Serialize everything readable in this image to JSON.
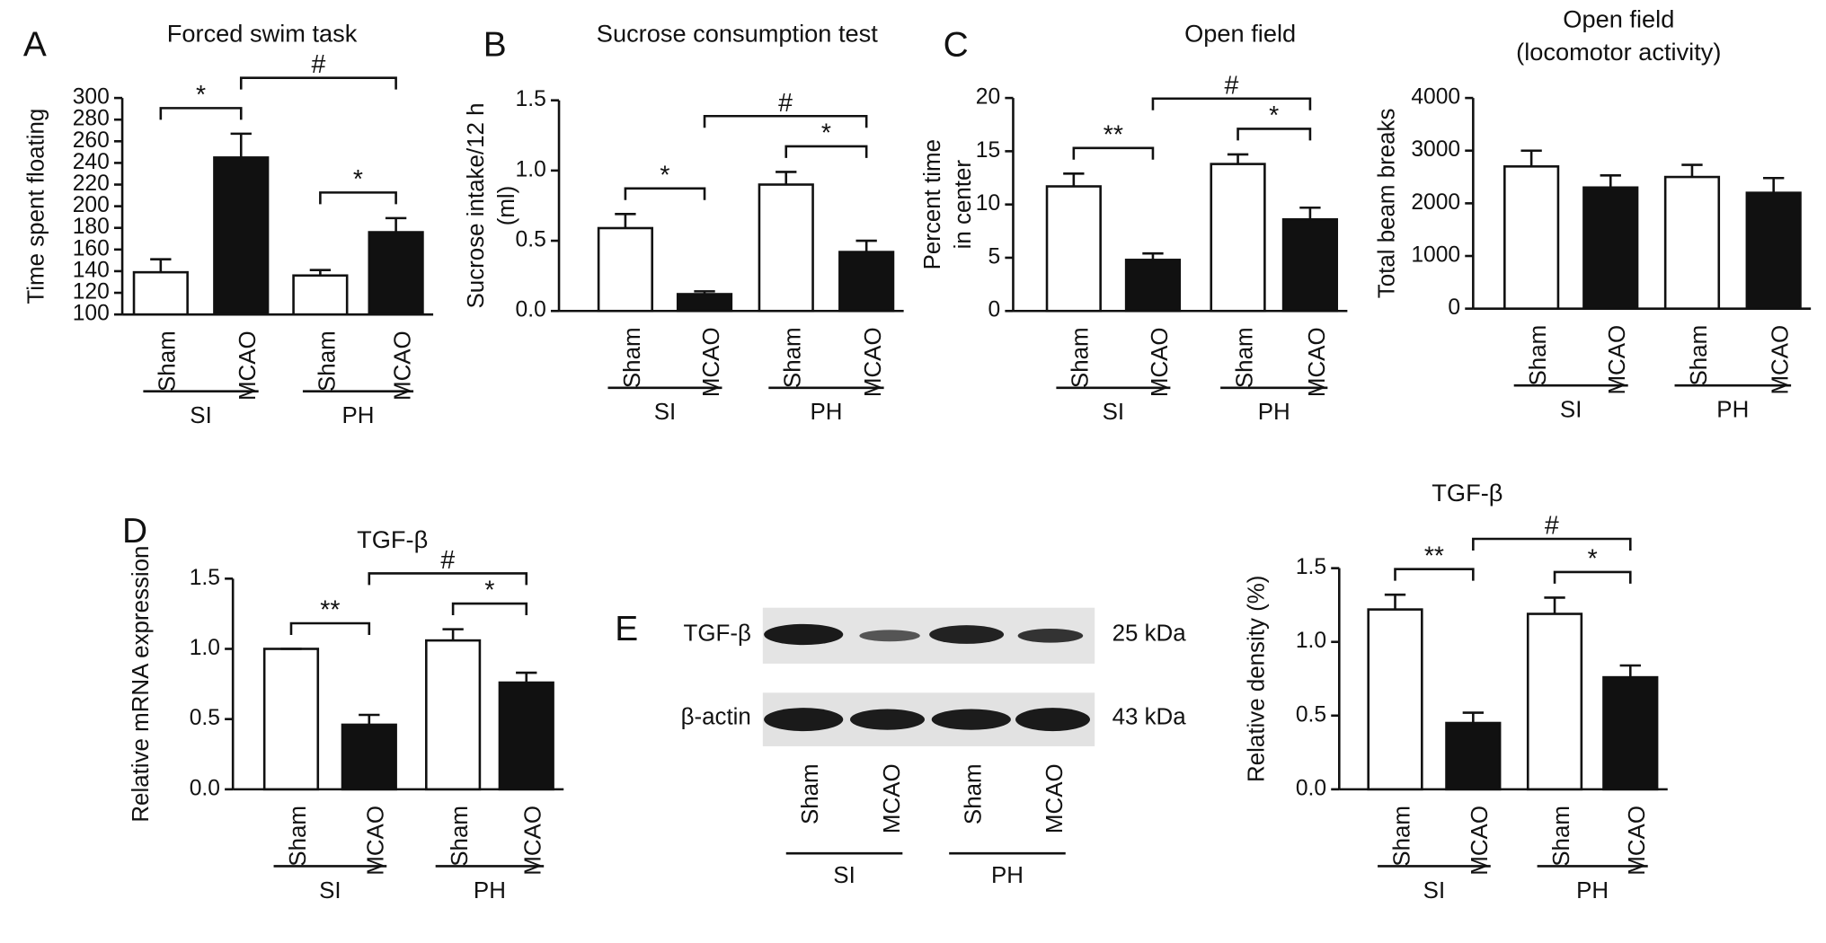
{
  "chart_data": [
    {
      "type": "bar",
      "panel": "A",
      "title": [
        "Forced swim task"
      ],
      "y_label": [
        "Time spent floating"
      ],
      "categories": [
        "Sham",
        "MCAO",
        "Sham",
        "MCAO"
      ],
      "groups": [
        "SI",
        "PH"
      ],
      "values": [
        139,
        245,
        136,
        176
      ],
      "errors": [
        12,
        22,
        5,
        13
      ],
      "colors": [
        "#ffffff",
        "#111111",
        "#ffffff",
        "#111111"
      ],
      "ylim": [
        100,
        300
      ],
      "yticks": [
        100,
        120,
        140,
        160,
        180,
        200,
        220,
        240,
        260,
        280,
        300
      ],
      "comparisons": [
        {
          "label": "*",
          "between": [
            0,
            1
          ]
        },
        {
          "label": "*",
          "between": [
            2,
            3
          ]
        },
        {
          "label": "#",
          "between": [
            1,
            3
          ]
        }
      ]
    },
    {
      "type": "bar",
      "panel": "B",
      "title": [
        "Sucrose consumption test"
      ],
      "y_label": [
        "Sucrose intake/12 h",
        "(ml)"
      ],
      "categories": [
        "Sham",
        "MCAO",
        "Sham",
        "MCAO"
      ],
      "groups": [
        "SI",
        "PH"
      ],
      "values": [
        0.59,
        0.12,
        0.9,
        0.42
      ],
      "errors": [
        0.1,
        0.02,
        0.09,
        0.08
      ],
      "colors": [
        "#ffffff",
        "#111111",
        "#ffffff",
        "#111111"
      ],
      "ylim": [
        0,
        1.5
      ],
      "yticks": [
        {
          "value": 0,
          "label": "0.0"
        },
        {
          "value": 0.5,
          "label": "0.5"
        },
        {
          "value": 1,
          "label": "1.0"
        },
        {
          "value": 1.5,
          "label": "1.5"
        }
      ],
      "comparisons": [
        {
          "label": "*",
          "between": [
            0,
            1
          ]
        },
        {
          "label": "*",
          "between": [
            2,
            3
          ]
        },
        {
          "label": "#",
          "between": [
            1,
            3
          ]
        }
      ]
    },
    {
      "type": "bar",
      "panel": "C",
      "title": [
        "Open field"
      ],
      "y_label": [
        "Percent time",
        "in center"
      ],
      "categories": [
        "Sham",
        "MCAO",
        "Sham",
        "MCAO"
      ],
      "groups": [
        "SI",
        "PH"
      ],
      "values": [
        11.7,
        4.8,
        13.8,
        8.6
      ],
      "errors": [
        1.2,
        0.6,
        0.9,
        1.1
      ],
      "colors": [
        "#ffffff",
        "#111111",
        "#ffffff",
        "#111111"
      ],
      "ylim": [
        0,
        20
      ],
      "yticks": [
        0,
        5,
        10,
        15,
        20
      ],
      "comparisons": [
        {
          "label": "**",
          "between": [
            0,
            1
          ]
        },
        {
          "label": "*",
          "between": [
            2,
            3
          ]
        },
        {
          "label": "#",
          "between": [
            1,
            3
          ]
        }
      ]
    },
    {
      "type": "bar",
      "title": [
        "Open field",
        "(locomotor activity)"
      ],
      "y_label": [
        "Total beam breaks"
      ],
      "categories": [
        "Sham",
        "MCAO",
        "Sham",
        "MCAO"
      ],
      "groups": [
        "SI",
        "PH"
      ],
      "values": [
        2700,
        2300,
        2500,
        2200
      ],
      "errors": [
        300,
        230,
        230,
        280
      ],
      "colors": [
        "#ffffff",
        "#111111",
        "#ffffff",
        "#111111"
      ],
      "ylim": [
        0,
        4000
      ],
      "yticks": [
        0,
        1000,
        2000,
        3000,
        4000
      ],
      "comparisons": []
    },
    {
      "type": "bar",
      "panel": "D",
      "title": [
        "TGF-β"
      ],
      "y_label": [
        "Relative mRNA expression"
      ],
      "categories": [
        "Sham",
        "MCAO",
        "Sham",
        "MCAO"
      ],
      "groups": [
        "SI",
        "PH"
      ],
      "values": [
        1.0,
        0.46,
        1.06,
        0.76
      ],
      "errors": [
        0,
        0.07,
        0.08,
        0.07
      ],
      "colors": [
        "#ffffff",
        "#111111",
        "#ffffff",
        "#111111"
      ],
      "ylim": [
        0,
        1.5
      ],
      "yticks": [
        {
          "value": 0,
          "label": "0.0"
        },
        {
          "value": 0.5,
          "label": "0.5"
        },
        {
          "value": 1,
          "label": "1.0"
        },
        {
          "value": 1.5,
          "label": "1.5"
        }
      ],
      "comparisons": [
        {
          "label": "**",
          "between": [
            0,
            1
          ]
        },
        {
          "label": "*",
          "between": [
            2,
            3
          ]
        },
        {
          "label": "#",
          "between": [
            1,
            3
          ]
        }
      ]
    },
    {
      "type": "bar",
      "title": [
        "TGF-β"
      ],
      "y_label": [
        "Relative density (%)"
      ],
      "categories": [
        "Sham",
        "MCAO",
        "Sham",
        "MCAO"
      ],
      "groups": [
        "SI",
        "PH"
      ],
      "values": [
        1.22,
        0.45,
        1.19,
        0.76
      ],
      "errors": [
        0.1,
        0.07,
        0.11,
        0.08
      ],
      "colors": [
        "#ffffff",
        "#111111",
        "#ffffff",
        "#111111"
      ],
      "ylim": [
        0,
        1.5
      ],
      "yticks": [
        {
          "value": 0,
          "label": "0.0"
        },
        {
          "value": 0.5,
          "label": "0.5"
        },
        {
          "value": 1,
          "label": "1.0"
        },
        {
          "value": 1.5,
          "label": "1.5"
        }
      ],
      "comparisons": [
        {
          "label": "**",
          "between": [
            0,
            1
          ]
        },
        {
          "label": "*",
          "between": [
            2,
            3
          ]
        },
        {
          "label": "#",
          "between": [
            1,
            3
          ]
        }
      ]
    }
  ],
  "blot": {
    "panel": "E",
    "rows": [
      {
        "label": "TGF-β",
        "size": "25 kDa"
      },
      {
        "label": "β-actin",
        "size": "43 kDa"
      }
    ],
    "lanes": [
      "Sham",
      "MCAO",
      "Sham",
      "MCAO"
    ],
    "groups": [
      "SI",
      "PH"
    ]
  }
}
